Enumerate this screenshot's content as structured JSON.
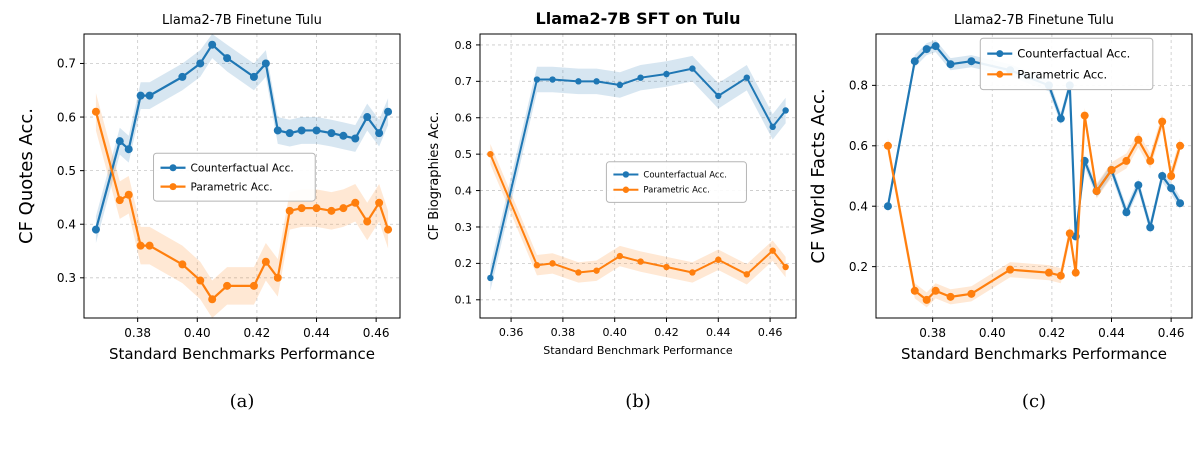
{
  "figure": {
    "background": "#ffffff"
  },
  "captions": {
    "a": "(a)",
    "b": "(b)",
    "c": "(c)"
  },
  "colors": {
    "counterfactual": "#1f77b4",
    "parametric": "#ff7f0e",
    "grid": "#c8c8c8",
    "spine": "#000000"
  },
  "chart_data": [
    {
      "id": "a",
      "type": "line",
      "title": "Llama2-7B Finetune Tulu",
      "xlabel": "Standard Benchmarks Performance",
      "ylabel": "CF Quotes Acc.",
      "xlim": [
        0.362,
        0.468
      ],
      "ylim": [
        0.225,
        0.755
      ],
      "xticks": [
        0.38,
        0.4,
        0.42,
        0.44,
        0.46
      ],
      "xtick_labels": [
        "0.38",
        "0.40",
        "0.42",
        "0.44",
        "0.46"
      ],
      "yticks": [
        0.3,
        0.4,
        0.5,
        0.6,
        0.7
      ],
      "ytick_labels": [
        "0.3",
        "0.4",
        "0.5",
        "0.6",
        "0.7"
      ],
      "grid": true,
      "legend_position": "center-left",
      "x": [
        0.366,
        0.374,
        0.377,
        0.381,
        0.384,
        0.395,
        0.401,
        0.405,
        0.41,
        0.419,
        0.423,
        0.427,
        0.431,
        0.435,
        0.44,
        0.445,
        0.449,
        0.453,
        0.457,
        0.461,
        0.464
      ],
      "series": [
        {
          "name": "Counterfactual Acc.",
          "color_key": "counterfactual",
          "band": 0.025,
          "values": [
            0.39,
            0.555,
            0.54,
            0.64,
            0.64,
            0.675,
            0.7,
            0.735,
            0.71,
            0.675,
            0.7,
            0.575,
            0.57,
            0.575,
            0.575,
            0.57,
            0.565,
            0.56,
            0.6,
            0.57,
            0.61
          ]
        },
        {
          "name": "Parametric Acc.",
          "color_key": "parametric",
          "band": 0.035,
          "values": [
            0.61,
            0.445,
            0.455,
            0.36,
            0.36,
            0.325,
            0.295,
            0.26,
            0.285,
            0.285,
            0.33,
            0.3,
            0.425,
            0.43,
            0.43,
            0.425,
            0.43,
            0.44,
            0.405,
            0.44,
            0.39
          ]
        }
      ]
    },
    {
      "id": "b",
      "type": "line",
      "title": "Llama2-7B SFT on Tulu",
      "xlabel": "Standard Benchmark Performance",
      "ylabel": "CF Biographies Acc.",
      "xlim": [
        0.348,
        0.47
      ],
      "ylim": [
        0.05,
        0.83
      ],
      "xticks": [
        0.36,
        0.38,
        0.4,
        0.42,
        0.44,
        0.46
      ],
      "xtick_labels": [
        "0.36",
        "0.38",
        "0.40",
        "0.42",
        "0.44",
        "0.46"
      ],
      "yticks": [
        0.1,
        0.2,
        0.3,
        0.4,
        0.5,
        0.6,
        0.7,
        0.8
      ],
      "ytick_labels": [
        "0.1",
        "0.2",
        "0.3",
        "0.4",
        "0.5",
        "0.6",
        "0.7",
        "0.8"
      ],
      "grid": true,
      "legend_position": "center-right",
      "x": [
        0.352,
        0.37,
        0.376,
        0.386,
        0.393,
        0.402,
        0.41,
        0.42,
        0.43,
        0.44,
        0.451,
        0.461,
        0.466
      ],
      "series": [
        {
          "name": "Counterfactual Acc.",
          "color_key": "counterfactual",
          "band": 0.035,
          "values": [
            0.16,
            0.705,
            0.705,
            0.7,
            0.7,
            0.69,
            0.71,
            0.72,
            0.735,
            0.66,
            0.71,
            0.575,
            0.62
          ]
        },
        {
          "name": "Parametric Acc.",
          "color_key": "parametric",
          "band": 0.028,
          "values": [
            0.5,
            0.195,
            0.2,
            0.175,
            0.18,
            0.22,
            0.205,
            0.19,
            0.175,
            0.21,
            0.17,
            0.235,
            0.19
          ]
        }
      ]
    },
    {
      "id": "c",
      "type": "line",
      "title": "Llama2-7B Finetune Tulu",
      "xlabel": "Standard Benchmarks Performance",
      "ylabel": "CF World Facts Acc.",
      "xlim": [
        0.361,
        0.467
      ],
      "ylim": [
        0.03,
        0.97
      ],
      "xticks": [
        0.38,
        0.4,
        0.42,
        0.44,
        0.46
      ],
      "xtick_labels": [
        "0.38",
        "0.40",
        "0.42",
        "0.44",
        "0.46"
      ],
      "yticks": [
        0.2,
        0.4,
        0.6,
        0.8
      ],
      "ytick_labels": [
        "0.2",
        "0.4",
        "0.6",
        "0.8"
      ],
      "grid": true,
      "legend_position": "upper-right",
      "x": [
        0.365,
        0.374,
        0.378,
        0.381,
        0.386,
        0.393,
        0.406,
        0.419,
        0.423,
        0.426,
        0.428,
        0.431,
        0.435,
        0.44,
        0.445,
        0.449,
        0.453,
        0.457,
        0.46,
        0.463
      ],
      "series": [
        {
          "name": "Counterfactual Acc.",
          "color_key": "counterfactual",
          "band": 0.02,
          "values": [
            0.4,
            0.88,
            0.92,
            0.93,
            0.87,
            0.88,
            0.85,
            0.8,
            0.69,
            0.8,
            0.3,
            0.55,
            0.45,
            0.52,
            0.38,
            0.47,
            0.33,
            0.5,
            0.46,
            0.41
          ]
        },
        {
          "name": "Parametric Acc.",
          "color_key": "parametric",
          "band": 0.025,
          "values": [
            0.6,
            0.12,
            0.09,
            0.12,
            0.1,
            0.11,
            0.19,
            0.18,
            0.17,
            0.31,
            0.18,
            0.7,
            0.45,
            0.52,
            0.55,
            0.62,
            0.55,
            0.68,
            0.5,
            0.6
          ]
        }
      ]
    }
  ]
}
